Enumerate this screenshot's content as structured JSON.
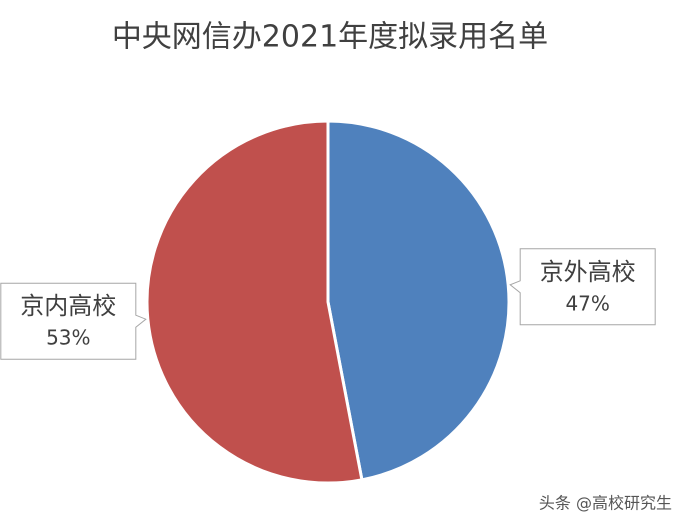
{
  "chart_data": {
    "type": "pie",
    "title": "中央网信办2021年度拟录用名单",
    "categories": [
      "京外高校",
      "京内高校"
    ],
    "values": [
      47,
      53
    ],
    "value_labels": [
      "47%",
      "53%"
    ],
    "colors": [
      "#4f81bd",
      "#c0504d"
    ],
    "watermark": "头条 @高校研究生"
  }
}
